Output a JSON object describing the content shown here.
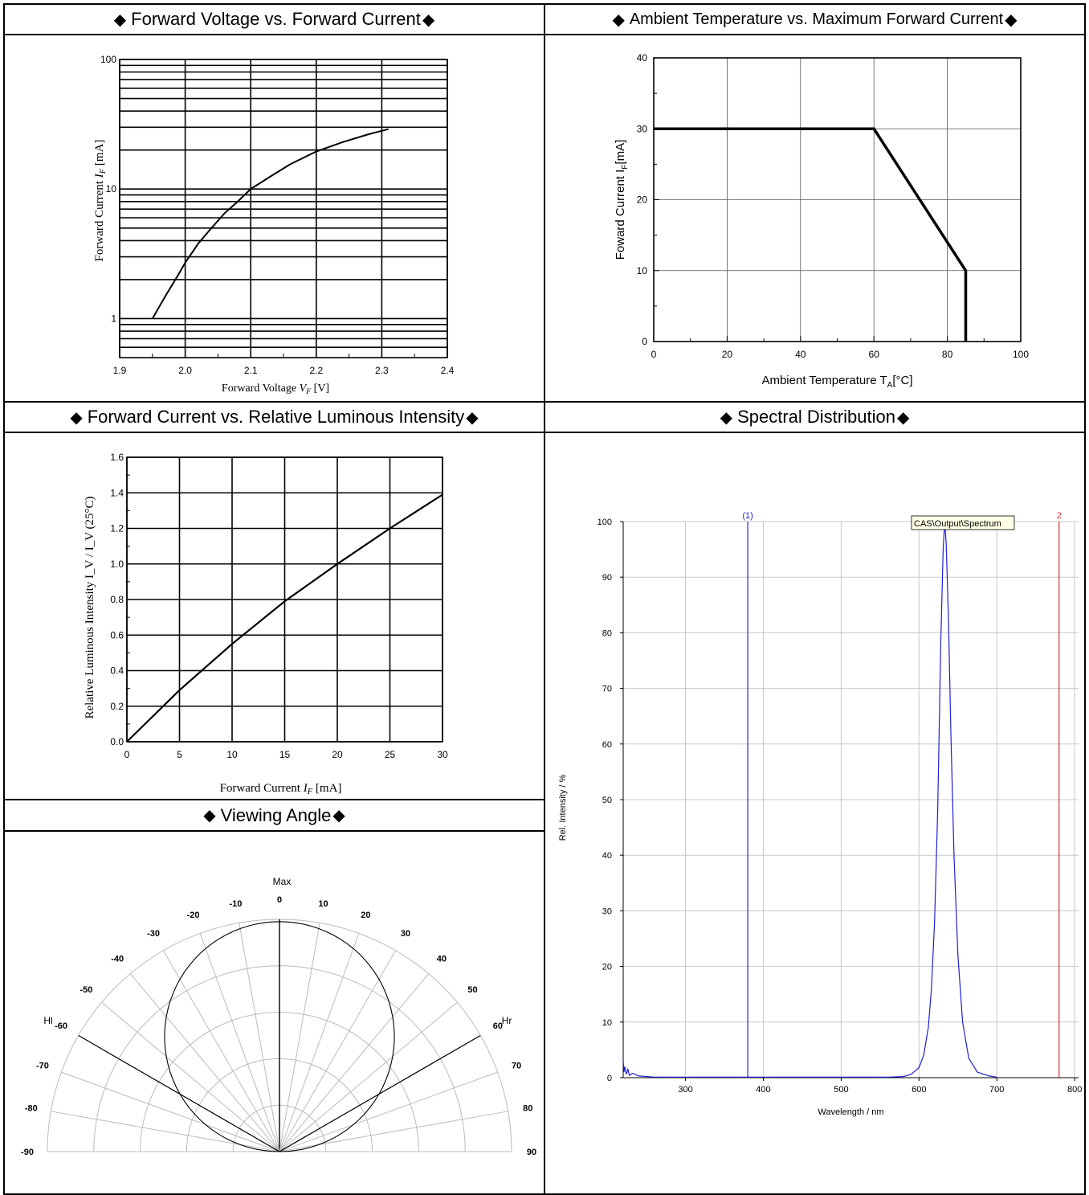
{
  "headers": {
    "diamond": "◆",
    "p1": "Forward Voltage vs. Forward Current",
    "p2": "Ambient Temperature vs. Maximum Forward Current",
    "p3": "Forward Current vs. Relative Luminous Intensity",
    "p4": "Spectral Distribution",
    "p5": "Viewing Angle"
  },
  "chart_data": [
    {
      "id": "vf_if",
      "type": "line",
      "xlabel": "Forward Voltage V_F [V]",
      "ylabel": "Forward Current I_F [mA]",
      "xlim": [
        1.9,
        2.4
      ],
      "ylim": [
        0.5,
        100
      ],
      "yscale": "log",
      "xticks": [
        1.9,
        2.0,
        2.1,
        2.2,
        2.3,
        2.4
      ],
      "xtick_labels": [
        "1.9",
        "2.0",
        "2.1",
        "2.2",
        "2.3",
        "2.4"
      ],
      "yticks": [
        1,
        10,
        100
      ],
      "ytick_labels": [
        "1",
        "10",
        "100"
      ],
      "grid": true,
      "series": [
        {
          "x": [
            1.95,
            1.97,
            1.99,
            2.0,
            2.02,
            2.04,
            2.06,
            2.08,
            2.1,
            2.13,
            2.16,
            2.2,
            2.24,
            2.28,
            2.31
          ],
          "y": [
            1.0,
            1.5,
            2.2,
            2.7,
            3.8,
            5.0,
            6.5,
            8.0,
            10.0,
            12.5,
            15.5,
            19.5,
            23.0,
            26.5,
            29.0
          ]
        }
      ]
    },
    {
      "id": "ta_if",
      "type": "line",
      "xlabel": "Ambient  Temperature T_A[°C]",
      "ylabel": "Foward Current I_F[mA]",
      "xlim": [
        0,
        100
      ],
      "ylim": [
        0,
        40
      ],
      "xticks": [
        0,
        20,
        40,
        60,
        80,
        100
      ],
      "yticks": [
        0,
        10,
        20,
        30,
        40
      ],
      "grid": true,
      "series": [
        {
          "x": [
            0,
            60,
            85,
            85
          ],
          "y": [
            30,
            30,
            10,
            0
          ]
        }
      ]
    },
    {
      "id": "if_iv",
      "type": "line",
      "xlabel": "Forward Current I_F [mA]",
      "ylabel": "Relative  Luminous  Intensity  I_V  /  I_V  (25°C)",
      "xlim": [
        0,
        30
      ],
      "ylim": [
        0,
        1.6
      ],
      "xticks": [
        0,
        5,
        10,
        15,
        20,
        25,
        30
      ],
      "xtick_labels": [
        "0",
        "5",
        "10",
        "15",
        "20",
        "25",
        "30"
      ],
      "yticks": [
        0.0,
        0.2,
        0.4,
        0.6,
        0.8,
        1.0,
        1.2,
        1.4,
        1.6
      ],
      "ytick_labels": [
        "0.0",
        "0.2",
        "0.4",
        "0.6",
        "0.8",
        "1.0",
        "1.2",
        "1.4",
        "1.6"
      ],
      "grid": true,
      "series": [
        {
          "x": [
            0,
            5,
            10,
            15,
            20,
            25,
            30
          ],
          "y": [
            0.0,
            0.29,
            0.55,
            0.79,
            1.0,
            1.2,
            1.39
          ]
        }
      ]
    },
    {
      "id": "spectrum",
      "type": "line",
      "xlabel": "Wavelength / nm",
      "ylabel": "Rel. Intensity / %",
      "xlim": [
        220,
        805
      ],
      "ylim": [
        0,
        100
      ],
      "xticks": [
        300,
        400,
        500,
        600,
        700,
        800
      ],
      "yticks": [
        0,
        10,
        20,
        30,
        40,
        50,
        60,
        70,
        80,
        90,
        100
      ],
      "grid": true,
      "markers": [
        {
          "label": "(1)",
          "x": 380,
          "color": "#1f1fd6"
        },
        {
          "label": "2",
          "x": 780,
          "color": "#e03030"
        }
      ],
      "legend": "CAS\\Output\\Spectrum",
      "series": [
        {
          "color": "#1f1fd6",
          "x": [
            220,
            221,
            222,
            224,
            226,
            228,
            232,
            240,
            260,
            300,
            400,
            500,
            560,
            580,
            590,
            600,
            606,
            612,
            616,
            620,
            624,
            628,
            631,
            633,
            635,
            638,
            641,
            645,
            650,
            656,
            664,
            675,
            690,
            700
          ],
          "y": [
            3.0,
            1.0,
            2.0,
            0.6,
            1.5,
            0.4,
            0.8,
            0.3,
            0.1,
            0.1,
            0.1,
            0.1,
            0.1,
            0.2,
            0.6,
            1.8,
            4.0,
            9.0,
            16.0,
            28.0,
            48.0,
            78.0,
            95.0,
            100.0,
            96.0,
            82.0,
            62.0,
            40.0,
            22.0,
            10.0,
            3.5,
            1.0,
            0.3,
            0.1
          ]
        }
      ]
    },
    {
      "id": "viewing_angle",
      "type": "polar",
      "label_max": "Max",
      "label_left": "Hl",
      "label_right": "Hr",
      "angles": [
        -90,
        -80,
        -70,
        -60,
        -50,
        -40,
        -30,
        -20,
        -10,
        0,
        10,
        20,
        30,
        40,
        50,
        60,
        70,
        80,
        90
      ],
      "angle_labels": [
        "-90",
        "-80",
        "-70",
        "-60",
        "-50",
        "-40",
        "-30",
        "-20",
        "-10",
        "0",
        "10",
        "20",
        "30",
        "40",
        "50",
        "60",
        "70",
        "80",
        "90"
      ],
      "half_angle_lines": [
        -60,
        60
      ],
      "pattern": "cosine"
    }
  ]
}
